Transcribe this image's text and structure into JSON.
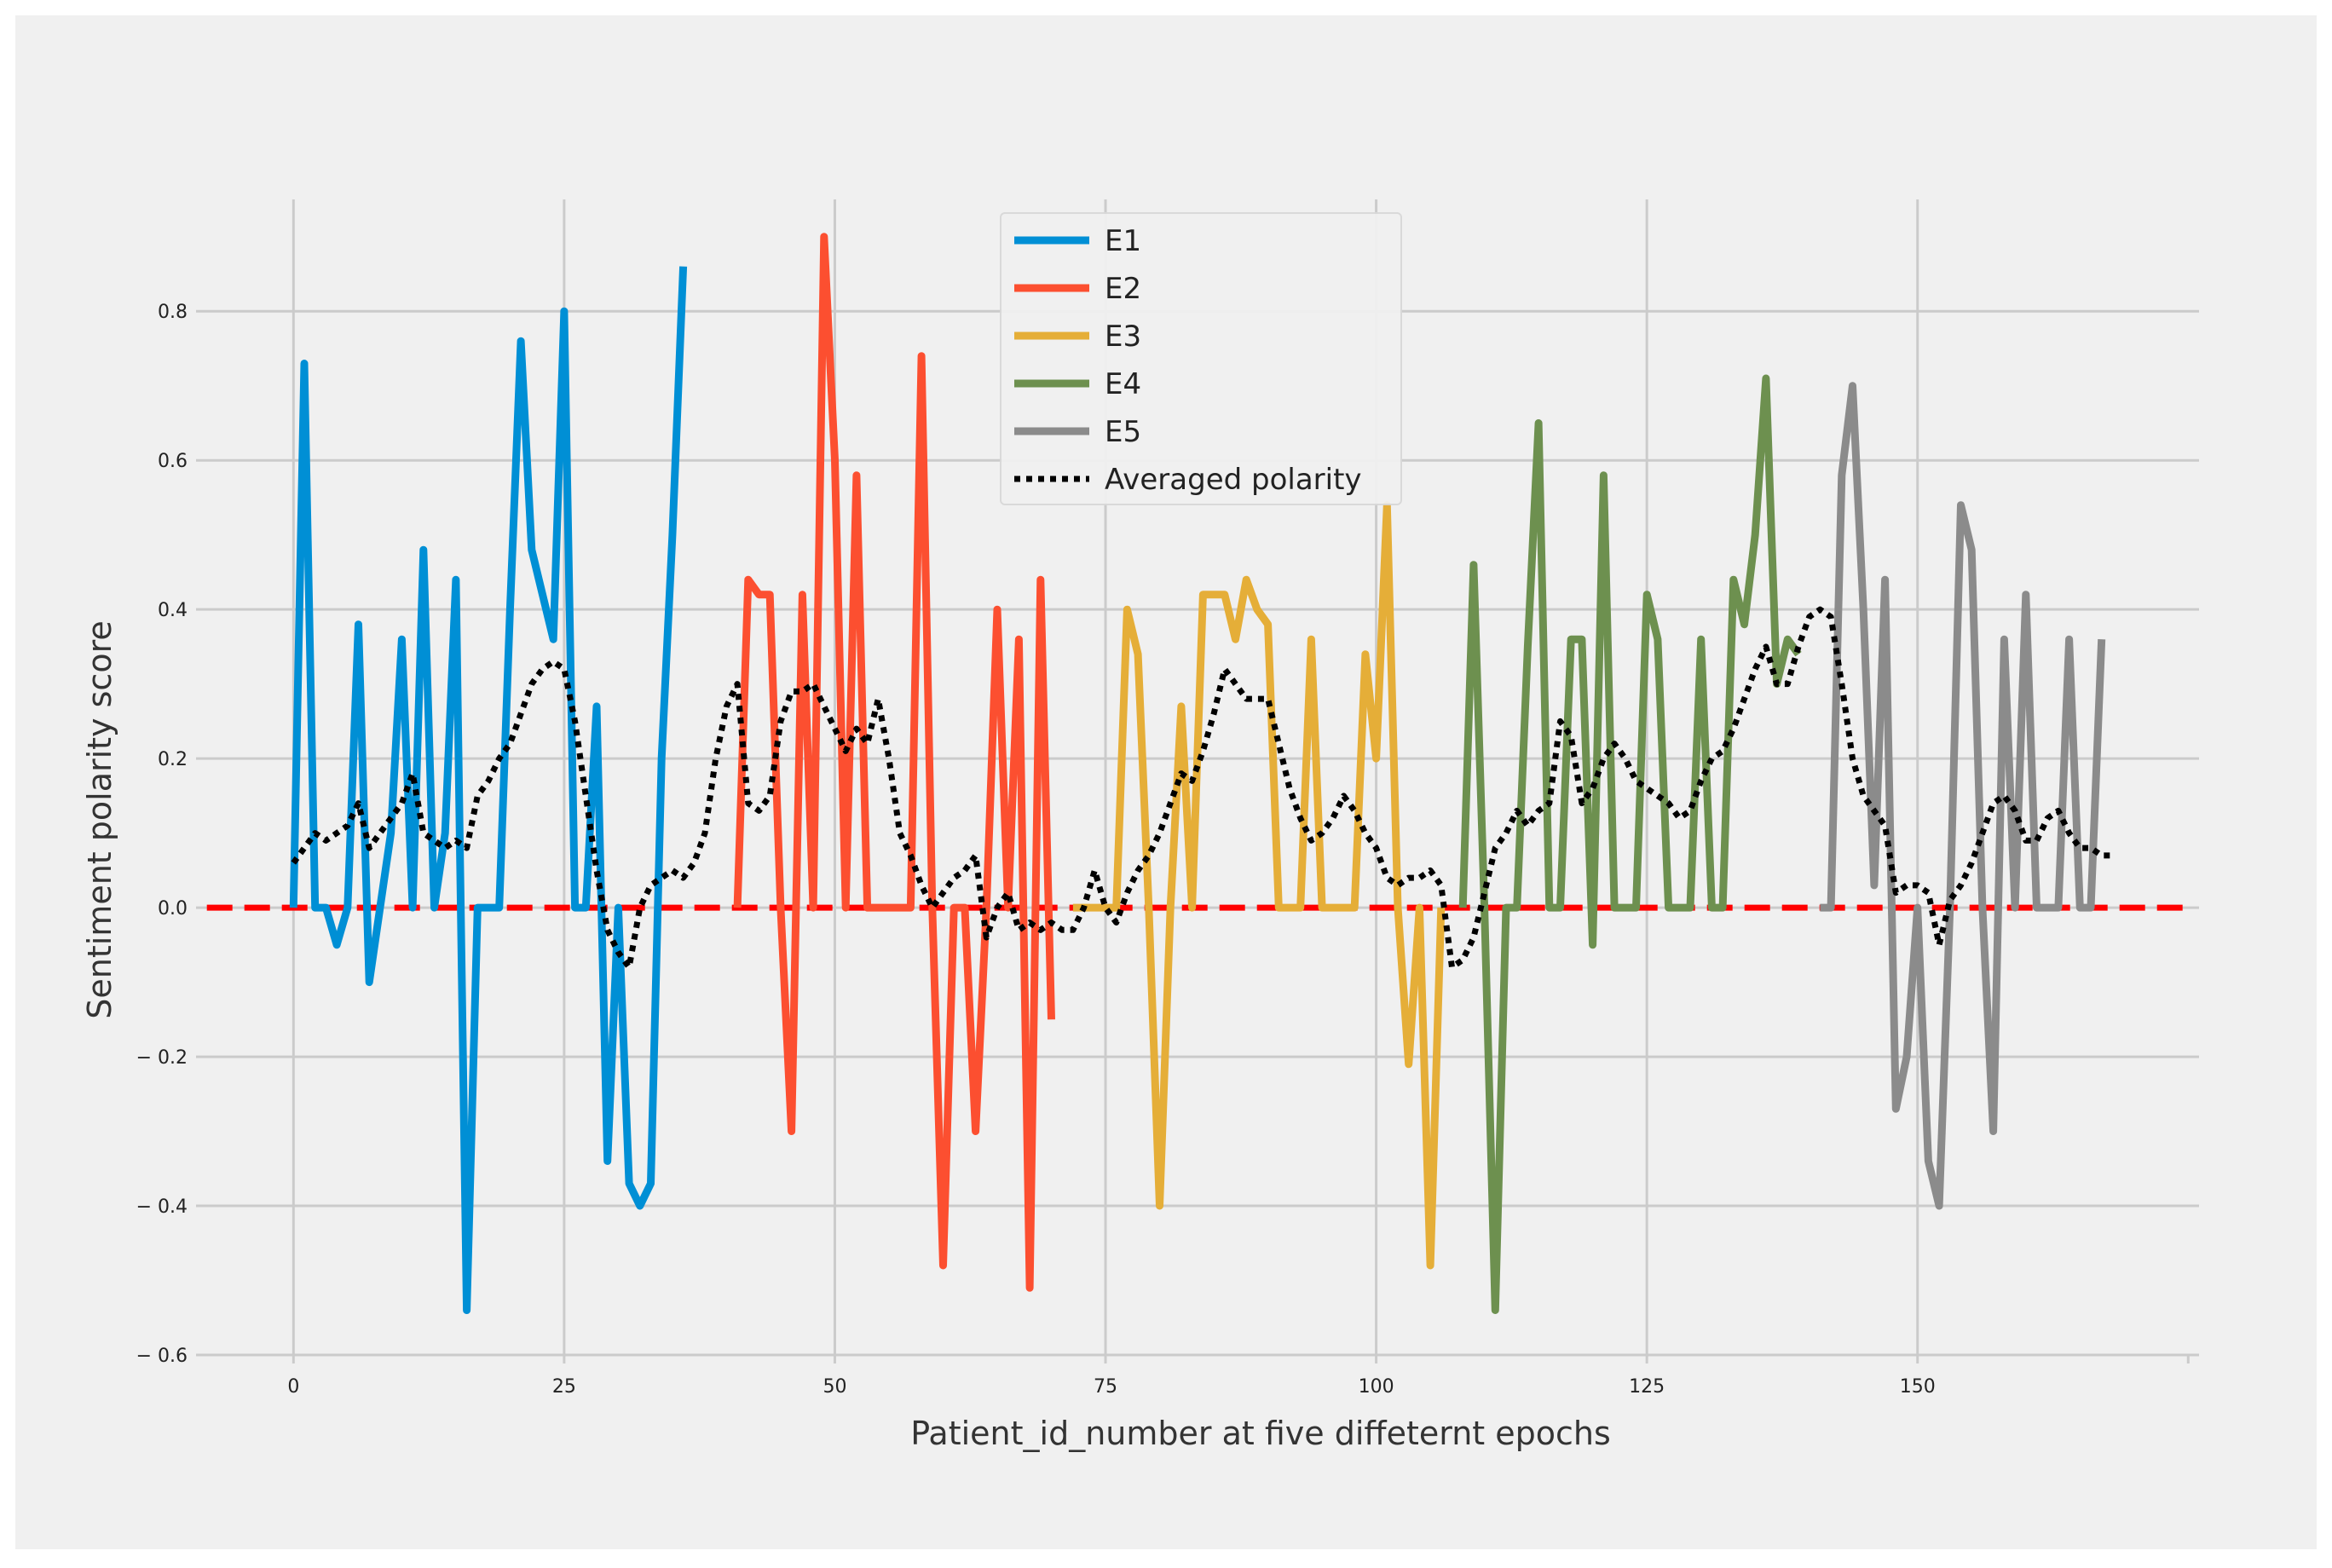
{
  "chart_data": {
    "type": "line",
    "title": "",
    "xlabel": "Patient_id_number at five diffeternt epochs",
    "ylabel": "Sentiment polarity score",
    "xlim": [
      -9,
      176
    ],
    "ylim": [
      -0.6,
      0.95
    ],
    "xticks": [
      0,
      25,
      50,
      75,
      100,
      125,
      150
    ],
    "xtick_labels": [
      "0",
      "25",
      "50",
      "75",
      "100",
      "125",
      "150"
    ],
    "yticks": [
      -0.6,
      -0.4,
      -0.2,
      0.0,
      0.2,
      0.4,
      0.6,
      0.8
    ],
    "ytick_labels": [
      "− 0.6",
      "− 0.4",
      "− 0.2",
      "0.0",
      "0.2",
      "0.4",
      "0.6",
      "0.8"
    ],
    "grid": true,
    "legend_position": "top-center",
    "reference_line": {
      "y": 0,
      "color": "#ff0000",
      "style": "dashed",
      "x_range": [
        -8,
        175
      ]
    },
    "series": [
      {
        "name": "E1",
        "color": "#008fd5",
        "x": [
          0,
          1,
          2,
          3,
          4,
          5,
          6,
          7,
          8,
          9,
          10,
          11,
          12,
          13,
          14,
          15,
          16,
          17,
          18,
          19,
          20,
          21,
          22,
          23,
          24,
          25,
          26,
          27,
          28,
          29,
          30,
          31,
          32,
          33,
          34,
          35,
          36
        ],
        "y": [
          0,
          0.73,
          0,
          0,
          -0.05,
          0,
          0.38,
          -0.1,
          0,
          0.1,
          0.36,
          0,
          0.48,
          0,
          0.1,
          0.44,
          -0.54,
          0,
          0,
          0,
          0.4,
          0.76,
          0.48,
          0.42,
          0.36,
          0.8,
          0,
          0,
          0.27,
          -0.34,
          0,
          -0.37,
          -0.4,
          -0.37,
          0.2,
          0.5,
          0.86
        ]
      },
      {
        "name": "E2",
        "color": "#fc4f30",
        "x": [
          41,
          42,
          43,
          44,
          45,
          46,
          47,
          48,
          49,
          50,
          51,
          52,
          53,
          54,
          55,
          56,
          57,
          58,
          59,
          60,
          61,
          62,
          63,
          64,
          65,
          66,
          67,
          68,
          69,
          70
        ],
        "y": [
          0,
          0.44,
          0.42,
          0.42,
          0,
          -0.3,
          0.42,
          0,
          0.9,
          0.6,
          0,
          0.58,
          0,
          0,
          0,
          0,
          0,
          0.74,
          0,
          -0.48,
          0,
          0,
          -0.3,
          0,
          0.4,
          0,
          0.36,
          -0.51,
          0.44,
          -0.15
        ]
      },
      {
        "name": "E3",
        "color": "#e5ae38",
        "x": [
          72,
          73,
          74,
          75,
          76,
          77,
          78,
          79,
          80,
          81,
          82,
          83,
          84,
          85,
          86,
          87,
          88,
          89,
          90,
          91,
          92,
          93,
          94,
          95,
          96,
          97,
          98,
          99,
          100,
          101,
          102,
          103,
          104,
          105,
          106
        ],
        "y": [
          0,
          0,
          0,
          0,
          0,
          0.4,
          0.34,
          0,
          -0.4,
          0,
          0.27,
          0,
          0.42,
          0.42,
          0.42,
          0.36,
          0.44,
          0.4,
          0.38,
          0,
          0,
          0,
          0.36,
          0,
          0,
          0,
          0,
          0.34,
          0.2,
          0.54,
          0,
          -0.21,
          0,
          -0.48,
          0
        ]
      },
      {
        "name": "E4",
        "color": "#6d904f",
        "x": [
          108,
          109,
          110,
          111,
          112,
          113,
          114,
          115,
          116,
          117,
          118,
          119,
          120,
          121,
          122,
          123,
          124,
          125,
          126,
          127,
          128,
          129,
          130,
          131,
          132,
          133,
          134,
          135,
          136,
          137,
          138,
          139
        ],
        "y": [
          0,
          0.46,
          0,
          -0.54,
          0,
          0,
          0.35,
          0.65,
          0,
          0,
          0.36,
          0.36,
          -0.05,
          0.58,
          0,
          0,
          0,
          0.42,
          0.36,
          0,
          0,
          0,
          0.36,
          0,
          0,
          0.44,
          0.38,
          0.5,
          0.71,
          0.3,
          0.36,
          0.34
        ]
      },
      {
        "name": "E5",
        "color": "#8b8b8b",
        "x": [
          141,
          142,
          143,
          144,
          145,
          146,
          147,
          148,
          149,
          150,
          151,
          152,
          153,
          154,
          155,
          156,
          157,
          158,
          159,
          160,
          161,
          162,
          163,
          164,
          165,
          166,
          167
        ],
        "y": [
          0,
          0,
          0.58,
          0.7,
          0.4,
          0.03,
          0.44,
          -0.27,
          -0.2,
          0,
          -0.34,
          -0.4,
          0,
          0.54,
          0.48,
          0,
          -0.3,
          0.36,
          0,
          0.42,
          0,
          0,
          0,
          0.36,
          0,
          0,
          0.36
        ]
      },
      {
        "name": "Averaged polarity",
        "color": "#000000",
        "style": "dotted",
        "x": [
          0,
          1,
          2,
          3,
          4,
          5,
          6,
          7,
          8,
          9,
          10,
          11,
          12,
          13,
          14,
          15,
          16,
          17,
          18,
          19,
          20,
          21,
          22,
          23,
          24,
          25,
          26,
          27,
          28,
          29,
          30,
          31,
          32,
          33,
          34,
          35,
          36,
          37,
          38,
          39,
          40,
          41,
          42,
          43,
          44,
          45,
          46,
          47,
          48,
          49,
          50,
          51,
          52,
          53,
          54,
          55,
          56,
          57,
          58,
          59,
          60,
          61,
          62,
          63,
          64,
          65,
          66,
          67,
          68,
          69,
          70,
          71,
          72,
          73,
          74,
          75,
          76,
          77,
          78,
          79,
          80,
          81,
          82,
          83,
          84,
          85,
          86,
          87,
          88,
          89,
          90,
          91,
          92,
          93,
          94,
          95,
          96,
          97,
          98,
          99,
          100,
          101,
          102,
          103,
          104,
          105,
          106,
          107,
          108,
          109,
          110,
          111,
          112,
          113,
          114,
          115,
          116,
          117,
          118,
          119,
          120,
          121,
          122,
          123,
          124,
          125,
          126,
          127,
          128,
          129,
          130,
          131,
          132,
          133,
          134,
          135,
          136,
          137,
          138,
          139,
          140,
          141,
          142,
          143,
          144,
          145,
          146,
          147,
          148,
          149,
          150,
          151,
          152,
          153,
          154,
          155,
          156,
          157,
          158,
          159,
          160,
          161,
          162,
          163,
          164,
          165,
          166,
          167,
          168
        ],
        "y": [
          0.06,
          0.08,
          0.1,
          0.09,
          0.1,
          0.11,
          0.14,
          0.08,
          0.1,
          0.12,
          0.14,
          0.18,
          0.1,
          0.09,
          0.08,
          0.09,
          0.08,
          0.15,
          0.17,
          0.2,
          0.22,
          0.26,
          0.3,
          0.32,
          0.33,
          0.32,
          0.25,
          0.15,
          0.05,
          -0.03,
          -0.06,
          -0.08,
          0,
          0.03,
          0.04,
          0.05,
          0.04,
          0.06,
          0.1,
          0.2,
          0.27,
          0.3,
          0.14,
          0.13,
          0.15,
          0.25,
          0.29,
          0.29,
          0.3,
          0.27,
          0.24,
          0.21,
          0.24,
          0.22,
          0.28,
          0.2,
          0.1,
          0.07,
          0.03,
          0,
          0.02,
          0.04,
          0.05,
          0.07,
          -0.04,
          0,
          0.02,
          -0.03,
          -0.02,
          -0.03,
          -0.02,
          -0.03,
          -0.03,
          0,
          0.05,
          0,
          -0.02,
          0.02,
          0.05,
          0.07,
          0.1,
          0.14,
          0.18,
          0.17,
          0.21,
          0.26,
          0.32,
          0.3,
          0.28,
          0.28,
          0.28,
          0.22,
          0.16,
          0.12,
          0.09,
          0.1,
          0.12,
          0.15,
          0.13,
          0.1,
          0.08,
          0.04,
          0.03,
          0.04,
          0.04,
          0.05,
          0.03,
          -0.08,
          -0.07,
          -0.04,
          0.02,
          0.08,
          0.1,
          0.13,
          0.11,
          0.13,
          0.14,
          0.25,
          0.23,
          0.14,
          0.16,
          0.2,
          0.22,
          0.2,
          0.17,
          0.16,
          0.15,
          0.14,
          0.12,
          0.13,
          0.17,
          0.2,
          0.21,
          0.24,
          0.28,
          0.32,
          0.35,
          0.3,
          0.3,
          0.35,
          0.39,
          0.4,
          0.39,
          0.3,
          0.2,
          0.15,
          0.13,
          0.11,
          0.02,
          0.03,
          0.03,
          0.02,
          -0.05,
          0.01,
          0.03,
          0.06,
          0.1,
          0.14,
          0.15,
          0.13,
          0.09,
          0.09,
          0.12,
          0.13,
          0.1,
          0.08,
          0.08,
          0.07,
          0.07
        ]
      }
    ]
  }
}
